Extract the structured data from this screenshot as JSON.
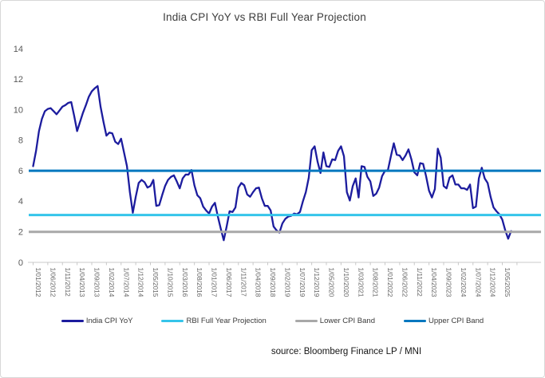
{
  "title": "India CPI YoY vs RBI Full Year Projection",
  "source": "source: Bloomberg Finance LP / MNI",
  "colors": {
    "cpi_line": "#1c1c9e",
    "rbi_projection": "#35c4ea",
    "lower_band": "#a8a8a8",
    "upper_band": "#0077bf",
    "axis_line": "#c8c8c8",
    "title_text": "#3d3d3d",
    "source_text": "#161616"
  },
  "chart_data": {
    "type": "line",
    "title": "India CPI YoY vs RBI Full Year Projection",
    "xlabel": "",
    "ylabel": "",
    "ylim": [
      0,
      14
    ],
    "y_ticks": [
      0,
      2,
      4,
      6,
      8,
      10,
      12,
      14
    ],
    "grid": false,
    "legend_position": "bottom",
    "x_tick_labels": [
      "1/01/2012",
      "1/06/2012",
      "1/11/2012",
      "1/04/2013",
      "1/09/2013",
      "1/02/2014",
      "1/07/2014",
      "1/12/2014",
      "1/05/2015",
      "1/10/2015",
      "1/03/2016",
      "1/08/2016",
      "1/01/2017",
      "1/06/2017",
      "1/11/2017",
      "1/04/2018",
      "1/09/2018",
      "1/02/2019",
      "1/07/2019",
      "1/12/2019",
      "1/05/2020",
      "1/10/2020",
      "1/03/2021",
      "1/08/2021",
      "1/01/2022",
      "1/06/2022",
      "1/11/2022",
      "1/04/2023",
      "1/09/2023",
      "1/02/2024",
      "1/07/2024",
      "1/12/2024",
      "1/05/2025"
    ],
    "series": [
      {
        "name": "India CPI YoY",
        "color_key": "cpi_line",
        "start": "1/01/2012",
        "frequency": "monthly",
        "values_monthly": [
          6.3,
          7.3,
          8.6,
          9.4,
          9.9,
          10.05,
          10.1,
          9.9,
          9.7,
          9.95,
          10.2,
          10.3,
          10.45,
          10.5,
          9.6,
          8.6,
          9.2,
          9.8,
          10.3,
          10.85,
          11.2,
          11.4,
          11.55,
          10.2,
          9.2,
          8.3,
          8.5,
          8.45,
          7.9,
          7.75,
          8.1,
          7.2,
          6.3,
          4.6,
          3.25,
          4.3,
          5.2,
          5.4,
          5.25,
          4.9,
          5.0,
          5.4,
          3.7,
          3.75,
          4.4,
          5.0,
          5.4,
          5.6,
          5.7,
          5.3,
          4.85,
          5.5,
          5.75,
          5.75,
          6.05,
          5.05,
          4.4,
          4.2,
          3.65,
          3.4,
          3.2,
          3.65,
          3.9,
          3.0,
          2.2,
          1.45,
          2.35,
          3.35,
          3.3,
          3.6,
          4.9,
          5.2,
          5.05,
          4.45,
          4.3,
          4.6,
          4.85,
          4.9,
          4.2,
          3.7,
          3.7,
          3.4,
          2.35,
          2.1,
          1.95,
          2.55,
          2.85,
          3.0,
          3.05,
          3.2,
          3.15,
          3.3,
          4.0,
          4.6,
          5.55,
          7.35,
          7.6,
          6.6,
          5.85,
          7.2,
          6.3,
          6.25,
          6.75,
          6.7,
          7.3,
          7.6,
          6.95,
          4.6,
          4.05,
          5.0,
          5.5,
          4.25,
          6.3,
          6.25,
          5.6,
          5.3,
          4.35,
          4.5,
          4.9,
          5.65,
          6.0,
          6.05,
          6.95,
          7.8,
          7.05,
          7.0,
          6.7,
          7.0,
          7.4,
          6.75,
          5.9,
          5.7,
          6.5,
          6.45,
          5.65,
          4.7,
          4.25,
          4.8,
          7.45,
          6.85,
          5.0,
          4.85,
          5.55,
          5.7,
          5.1,
          5.1,
          4.85,
          4.85,
          4.75,
          5.1,
          3.55,
          3.65,
          5.5,
          6.2,
          5.5,
          5.2,
          4.3,
          3.6,
          3.35,
          3.15,
          2.8,
          2.1,
          1.55,
          2.05
        ]
      },
      {
        "name": "RBI Full Year Projection",
        "color_key": "rbi_projection",
        "value": 3.1
      },
      {
        "name": "Lower CPI Band",
        "color_key": "lower_band",
        "value": 2
      },
      {
        "name": "Upper CPI Band",
        "color_key": "upper_band",
        "value": 6
      }
    ]
  }
}
